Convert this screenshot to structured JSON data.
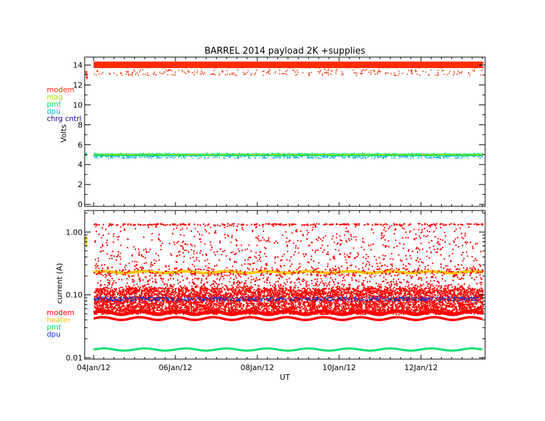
{
  "figure_title": "BARREL 2014 payload 2K +supplies",
  "x_axis": {
    "label": "UT",
    "tick_labels": [
      "04Jan/12",
      "06Jan/12",
      "08Jan/12",
      "10Jan/12",
      "12Jan/12"
    ]
  },
  "chart_data": [
    {
      "type": "scatter",
      "title": "BARREL 2014 payload 2K +supplies",
      "ylabel": "Volts",
      "ylim": [
        -0.2,
        14.8
      ],
      "yticks": [
        "0",
        "2",
        "4",
        "6",
        "8",
        "10",
        "12",
        "14"
      ],
      "legend_placement": "left",
      "x_range_days": [
        0,
        9.5
      ],
      "series": [
        {
          "name": "modem",
          "color": "#ff2a00",
          "level": 14.0,
          "spread_upper": 0.4,
          "spread_lower": 0.6,
          "dense": true
        },
        {
          "name": "mag",
          "color": "#a8e000",
          "level": 5.0,
          "spread_upper": 0.15,
          "spread_lower": 0.15,
          "dense": true
        },
        {
          "name": "pmt",
          "color": "#00e070",
          "level": 5.0,
          "spread_upper": 0.15,
          "spread_lower": 0.2,
          "dense": true
        },
        {
          "name": "dpu",
          "color": "#00b0d8",
          "level": 4.85,
          "spread_upper": 0.1,
          "spread_lower": 0.15,
          "dense": true
        },
        {
          "name": "chrg cntrl",
          "color": "#1a0090",
          "level": null,
          "dense": false
        }
      ]
    },
    {
      "type": "scatter",
      "ylabel": "current (A)",
      "yscale": "log",
      "ylim": [
        0.0095,
        2.2
      ],
      "yticks": [
        "0.01",
        "0.10",
        "1.00"
      ],
      "legend_placement": "left",
      "x_range_days": [
        0,
        9.5
      ],
      "series": [
        {
          "name": "modem",
          "color": "#ff0000",
          "band_low": 0.05,
          "band_high": 0.13,
          "upper_line": 1.35,
          "lower_line": 0.042
        },
        {
          "name": "heater",
          "color": "#ffc800",
          "level": 0.23
        },
        {
          "name": "pmt",
          "color": "#00e070",
          "level": 0.0135
        },
        {
          "name": "dpu",
          "color": "#1030c0",
          "level": 0.088
        }
      ]
    }
  ]
}
